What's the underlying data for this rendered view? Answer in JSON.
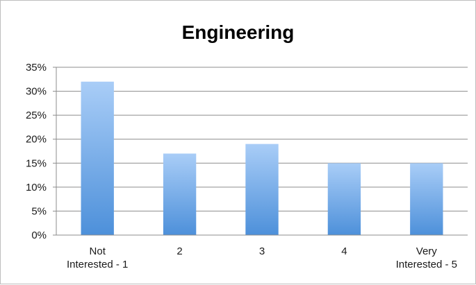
{
  "chart_data": {
    "type": "bar",
    "title": "Engineering",
    "xlabel": "",
    "ylabel": "",
    "categories": [
      [
        "Not",
        "Interested - 1"
      ],
      [
        "2"
      ],
      [
        "3"
      ],
      [
        "4"
      ],
      [
        "Very",
        "Interested - 5"
      ]
    ],
    "values": [
      32,
      17,
      19,
      15,
      15
    ],
    "y_ticks": [
      "0%",
      "5%",
      "10%",
      "15%",
      "20%",
      "25%",
      "30%",
      "35%"
    ],
    "ylim": [
      0,
      35
    ],
    "grid": true,
    "legend": "none",
    "colors": {
      "bar_top": "#a9cdf7",
      "bar_bottom": "#4d90da",
      "grid": "#8c8c8c",
      "axis": "#8c8c8c"
    }
  }
}
